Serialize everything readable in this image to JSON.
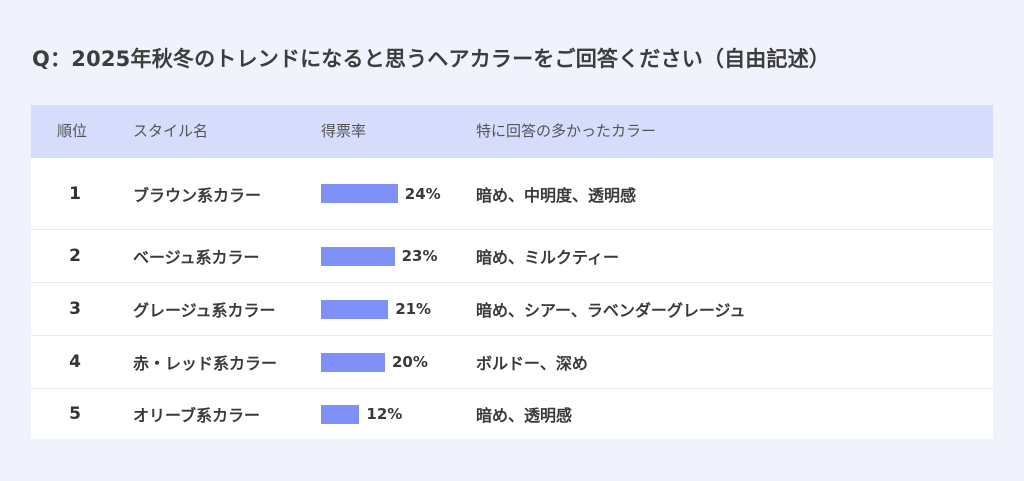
{
  "title": "Q：2025年秋冬のトレンドになると思うヘアカラーをご回答ください（自由記述）",
  "headers": {
    "rank": "順位",
    "style": "スタイル名",
    "rate": "得票率",
    "colors": "特に回答の多かったカラー"
  },
  "accent_color": "#7f91f8",
  "chart_data": {
    "type": "table",
    "title": "Q：2025年秋冬のトレンドになると思うヘアカラーをご回答ください（自由記述）",
    "columns": [
      "順位",
      "スタイル名",
      "得票率",
      "特に回答の多かったカラー"
    ],
    "rows": [
      {
        "rank": "1",
        "style": "ブラウン系カラー",
        "value": 24,
        "label": "24%",
        "colors": "暗め、中明度、透明感"
      },
      {
        "rank": "2",
        "style": "ベージュ系カラー",
        "value": 23,
        "label": "23%",
        "colors": "暗め、ミルクティー"
      },
      {
        "rank": "3",
        "style": "グレージュ系カラー",
        "value": 21,
        "label": "21%",
        "colors": "暗め、シアー、ラベンダーグレージュ"
      },
      {
        "rank": "4",
        "style": "赤・レッド系カラー",
        "value": 20,
        "label": "20%",
        "colors": "ボルドー、深め"
      },
      {
        "rank": "5",
        "style": "オリーブ系カラー",
        "value": 12,
        "label": "12%",
        "colors": "暗め、透明感"
      }
    ]
  }
}
